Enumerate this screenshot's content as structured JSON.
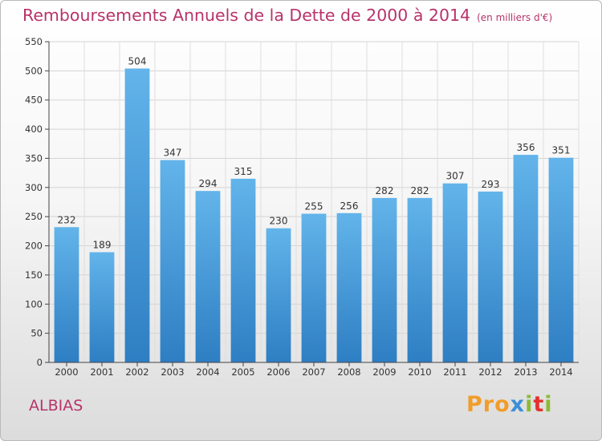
{
  "title": "Remboursements Annuels de la Dette de 2000 à 2014",
  "unit": "(en milliers d'€)",
  "location": "ALBIAS",
  "logo": {
    "p1": "Pro",
    "p2": "x",
    "p3": "i",
    "p4": "t",
    "p5": "i"
  },
  "colors": {
    "bar_top": "#62b4ea",
    "bar_bottom": "#2e7ec3",
    "title": "#b8336a"
  },
  "chart_data": {
    "type": "bar",
    "categories": [
      "2000",
      "2001",
      "2002",
      "2003",
      "2004",
      "2005",
      "2006",
      "2007",
      "2008",
      "2009",
      "2010",
      "2011",
      "2012",
      "2013",
      "2014"
    ],
    "values": [
      232,
      189,
      504,
      347,
      294,
      315,
      230,
      255,
      256,
      282,
      282,
      307,
      293,
      356,
      351
    ],
    "ylim": [
      0,
      550
    ],
    "yticks": [
      0,
      50,
      100,
      150,
      200,
      250,
      300,
      350,
      400,
      450,
      500,
      550
    ],
    "grid": true
  }
}
